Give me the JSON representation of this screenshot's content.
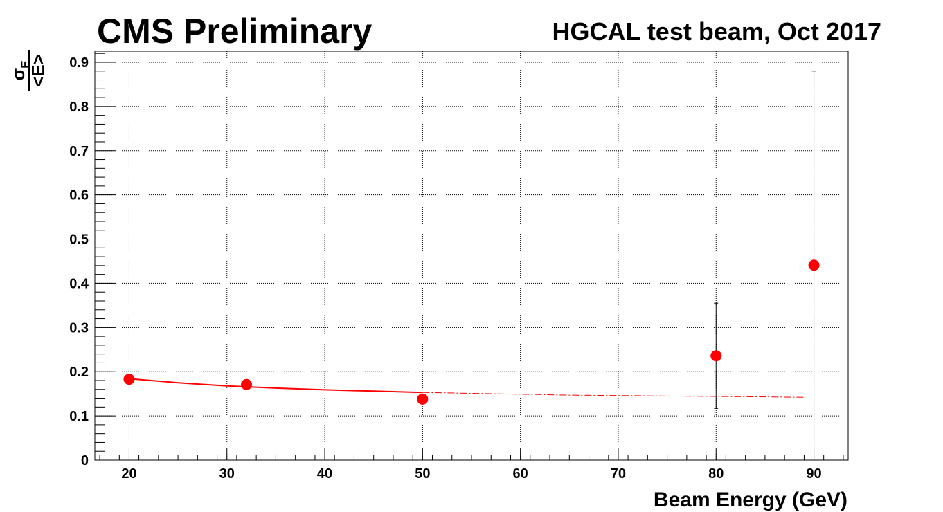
{
  "header": {
    "experiment": "CMS Preliminary",
    "run_label": "HGCAL test beam, Oct 2017"
  },
  "colors": {
    "points": "#ff0000",
    "fit": "#ff0000",
    "error_bars": "#000000",
    "grid": "#000000",
    "frame": "#000000"
  },
  "chart_data": {
    "type": "scatter",
    "title": "",
    "xlabel": "Beam Energy (GeV)",
    "ylabel_numerator": "σ",
    "ylabel_numerator_sub": "E",
    "ylabel_denominator": "<E>",
    "xlim": [
      16.5,
      93.5
    ],
    "ylim": [
      0,
      0.925
    ],
    "xticks": [
      20,
      30,
      40,
      50,
      60,
      70,
      80,
      90
    ],
    "xtick_labels": [
      "20",
      "30",
      "40",
      "50",
      "60",
      "70",
      "80",
      "90"
    ],
    "yticks": [
      0,
      0.1,
      0.2,
      0.3,
      0.4,
      0.5,
      0.6,
      0.7,
      0.8,
      0.9
    ],
    "ytick_labels": [
      "0",
      "0.1",
      "0.2",
      "0.3",
      "0.4",
      "0.5",
      "0.6",
      "0.7",
      "0.8",
      "0.9"
    ],
    "grid": true,
    "series": [
      {
        "type": "scatter",
        "x": [
          20,
          32,
          50,
          80,
          90
        ],
        "y": [
          0.183,
          0.171,
          0.138,
          0.236,
          0.441
        ],
        "y_err_low": [
          0.0,
          0.0,
          0.0,
          0.119,
          0.441
        ],
        "y_err_high": [
          0.0,
          0.0,
          0.0,
          0.119,
          0.439
        ]
      },
      {
        "type": "line",
        "style": "solid",
        "x": [
          20,
          25,
          30,
          35,
          40,
          45,
          50
        ],
        "y": [
          0.184,
          0.175,
          0.168,
          0.163,
          0.159,
          0.156,
          0.153
        ]
      },
      {
        "type": "line",
        "style": "dashed",
        "x": [
          50,
          55,
          60,
          65,
          70,
          75,
          80,
          85,
          89
        ],
        "y": [
          0.153,
          0.151,
          0.149,
          0.147,
          0.146,
          0.145,
          0.144,
          0.143,
          0.142
        ]
      }
    ]
  }
}
